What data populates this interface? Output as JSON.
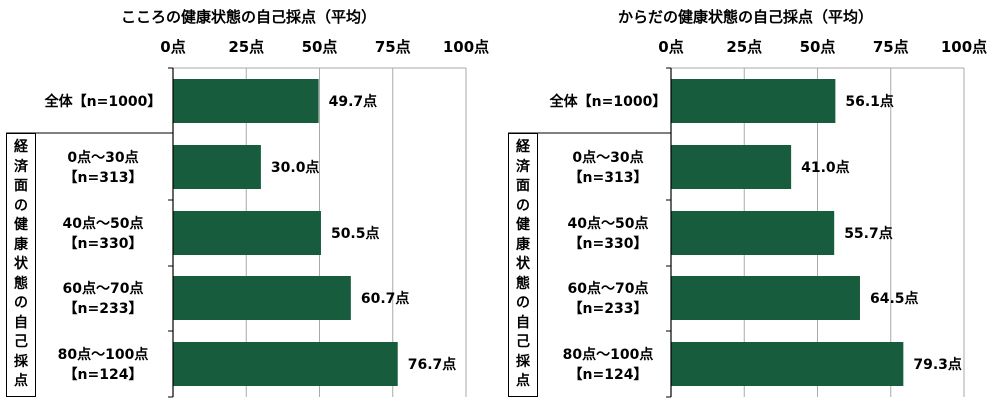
{
  "chart_data": [
    {
      "type": "bar",
      "orientation": "horizontal",
      "title": "こころの健康状態の自己採点（平均）",
      "xlim": [
        0,
        100
      ],
      "ticks": [
        "0点",
        "25点",
        "50点",
        "75点",
        "100点"
      ],
      "tick_values": [
        0,
        25,
        50,
        75,
        100
      ],
      "group_label": "経済面の健康状態の自己採点",
      "categories": [
        [
          "全体【n=1000】"
        ],
        [
          "0点～30点",
          "【n=313】"
        ],
        [
          "40点～50点",
          "【n=330】"
        ],
        [
          "60点～70点",
          "【n=233】"
        ],
        [
          "80点～100点",
          "【n=124】"
        ]
      ],
      "values": [
        49.7,
        30.0,
        50.5,
        60.7,
        76.7
      ],
      "value_labels": [
        "49.7点",
        "30.0点",
        "50.5点",
        "60.7点",
        "76.7点"
      ],
      "bar_color": "#185c3e",
      "grid": true
    },
    {
      "type": "bar",
      "orientation": "horizontal",
      "title": "からだの健康状態の自己採点（平均）",
      "xlim": [
        0,
        100
      ],
      "ticks": [
        "0点",
        "25点",
        "50点",
        "75点",
        "100点"
      ],
      "tick_values": [
        0,
        25,
        50,
        75,
        100
      ],
      "group_label": "経済面の健康状態の自己採点",
      "categories": [
        [
          "全体【n=1000】"
        ],
        [
          "0点～30点",
          "【n=313】"
        ],
        [
          "40点～50点",
          "【n=330】"
        ],
        [
          "60点～70点",
          "【n=233】"
        ],
        [
          "80点～100点",
          "【n=124】"
        ]
      ],
      "values": [
        56.1,
        41.0,
        55.7,
        64.5,
        79.3
      ],
      "value_labels": [
        "56.1点",
        "41.0点",
        "55.7点",
        "64.5点",
        "79.3点"
      ],
      "bar_color": "#185c3e",
      "grid": true
    }
  ]
}
